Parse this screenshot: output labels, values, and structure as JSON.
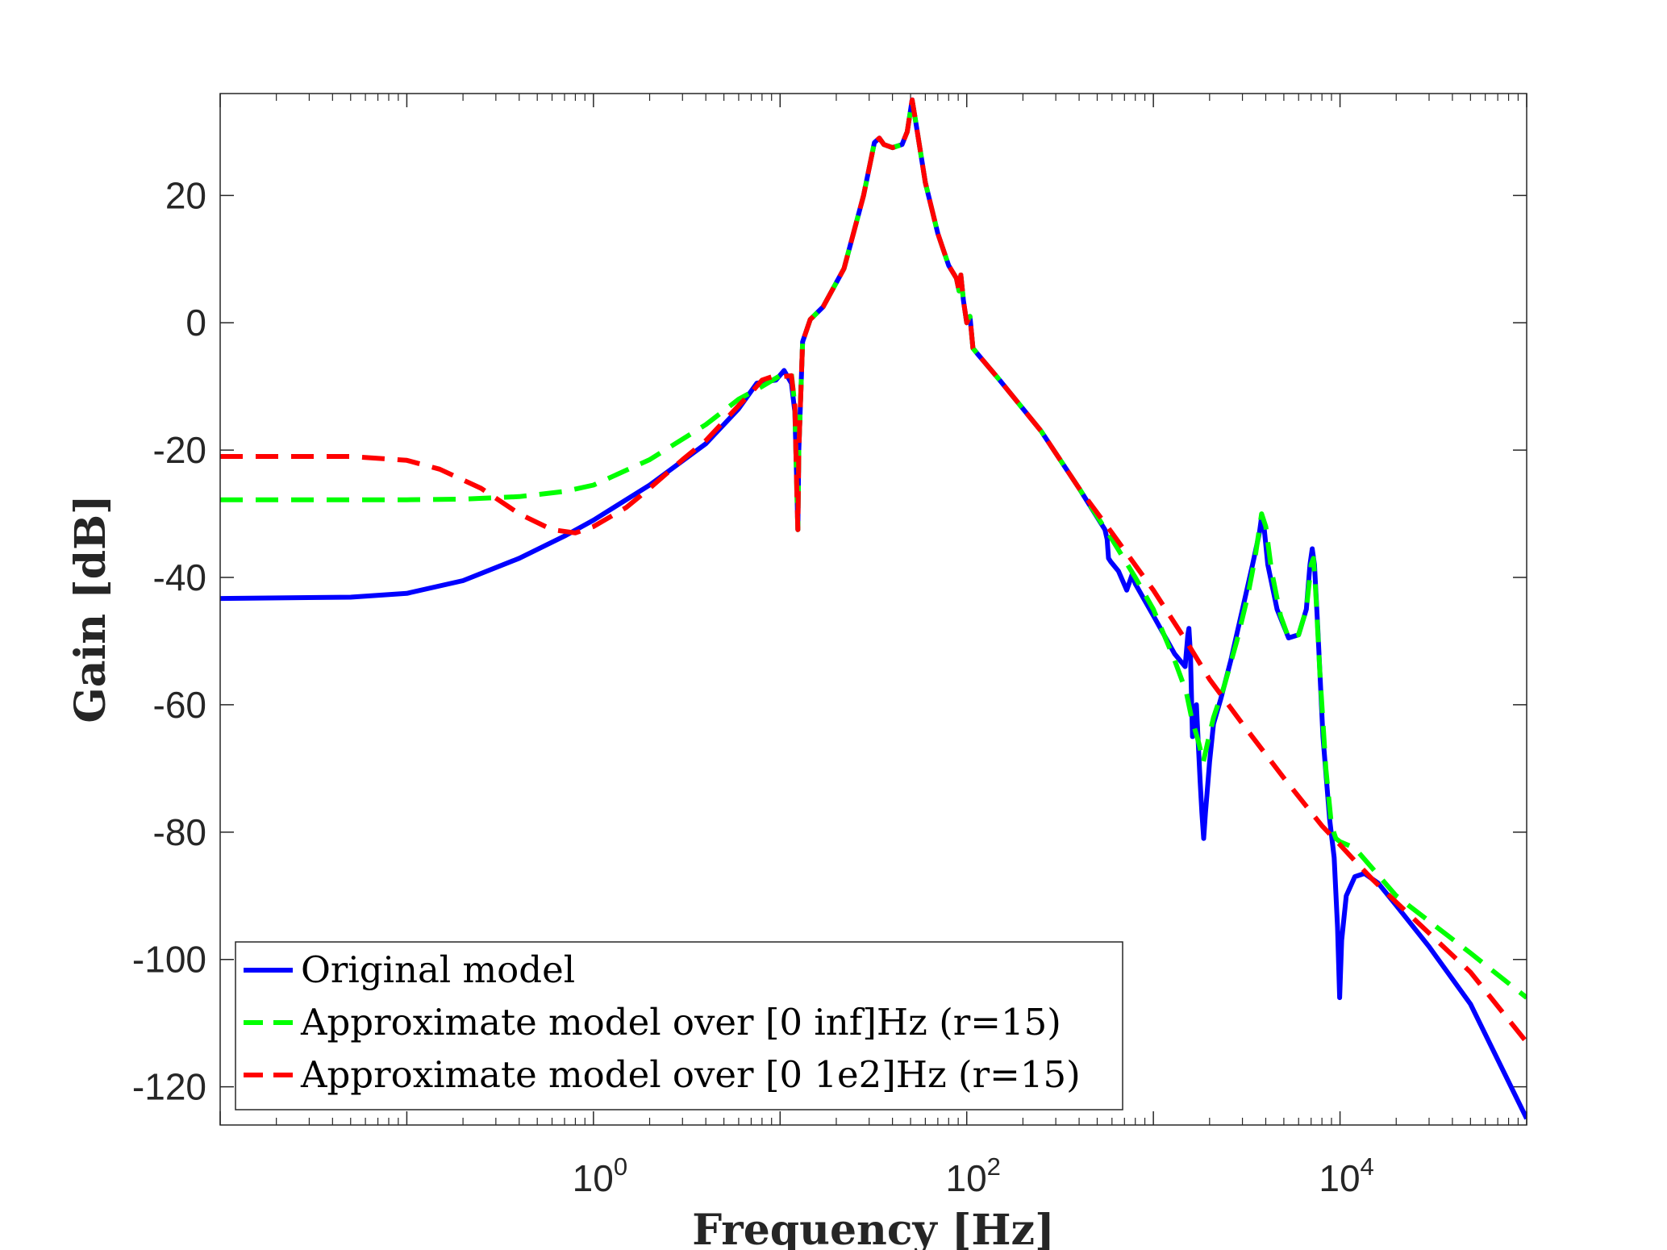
{
  "chart_data": {
    "type": "line",
    "xscale": "log",
    "xlabel": "Frequency [Hz]",
    "ylabel": "Gain [dB]",
    "xlim": [
      0.01,
      100000
    ],
    "ylim": [
      -126,
      36
    ],
    "xticks": [
      {
        "value": 1,
        "base": "10",
        "exp": "0"
      },
      {
        "value": 100,
        "base": "10",
        "exp": "2"
      },
      {
        "value": 10000,
        "base": "10",
        "exp": "4"
      }
    ],
    "yticks": [
      {
        "value": 20,
        "label": "20"
      },
      {
        "value": 0,
        "label": "0"
      },
      {
        "value": -20,
        "label": "-20"
      },
      {
        "value": -40,
        "label": "-40"
      },
      {
        "value": -60,
        "label": "-60"
      },
      {
        "value": -80,
        "label": "-80"
      },
      {
        "value": -100,
        "label": "-100"
      },
      {
        "value": -120,
        "label": "-120"
      }
    ],
    "grid": false,
    "legend_position": "bottom-left",
    "series": [
      {
        "name": "Original model",
        "color": "#0000ff",
        "style": "solid",
        "points": [
          [
            0.01,
            -43.3
          ],
          [
            0.05,
            -43.1
          ],
          [
            0.1,
            -42.5
          ],
          [
            0.2,
            -40.5
          ],
          [
            0.4,
            -37
          ],
          [
            0.7,
            -33.5
          ],
          [
            1,
            -31
          ],
          [
            2,
            -25.5
          ],
          [
            4,
            -19
          ],
          [
            6,
            -13.5
          ],
          [
            7.5,
            -9.5
          ],
          [
            8.5,
            -9.2
          ],
          [
            9.5,
            -9
          ],
          [
            10.5,
            -7.5
          ],
          [
            11.5,
            -9.5
          ],
          [
            12,
            -14
          ],
          [
            12.3,
            -26
          ],
          [
            12.45,
            -32.5
          ],
          [
            12.6,
            -20
          ],
          [
            13.2,
            -3
          ],
          [
            14.5,
            0.5
          ],
          [
            17,
            2.5
          ],
          [
            22,
            8.5
          ],
          [
            28,
            20
          ],
          [
            32,
            28.3
          ],
          [
            34,
            29
          ],
          [
            36,
            28
          ],
          [
            40,
            27.5
          ],
          [
            45,
            28
          ],
          [
            48,
            30
          ],
          [
            51,
            35
          ],
          [
            53,
            32
          ],
          [
            60,
            22
          ],
          [
            70,
            14
          ],
          [
            80,
            9
          ],
          [
            88,
            7
          ],
          [
            91,
            5
          ],
          [
            93,
            7.5
          ],
          [
            96,
            3.5
          ],
          [
            100,
            0
          ],
          [
            104,
            1
          ],
          [
            108,
            -4
          ],
          [
            115,
            -5
          ],
          [
            150,
            -9
          ],
          [
            250,
            -17
          ],
          [
            400,
            -26
          ],
          [
            550,
            -32.5
          ],
          [
            565,
            -34
          ],
          [
            575,
            -37
          ],
          [
            590,
            -37.5
          ],
          [
            650,
            -39
          ],
          [
            720,
            -42
          ],
          [
            770,
            -39.5
          ],
          [
            800,
            -41
          ],
          [
            1000,
            -46
          ],
          [
            1300,
            -52
          ],
          [
            1480,
            -54
          ],
          [
            1530,
            -49
          ],
          [
            1550,
            -48
          ],
          [
            1580,
            -52
          ],
          [
            1620,
            -65
          ],
          [
            1660,
            -63
          ],
          [
            1700,
            -60
          ],
          [
            1740,
            -66
          ],
          [
            1780,
            -72
          ],
          [
            1820,
            -77
          ],
          [
            1860,
            -81
          ],
          [
            1900,
            -77
          ],
          [
            2000,
            -69
          ],
          [
            2100,
            -63
          ],
          [
            2300,
            -59
          ],
          [
            2600,
            -53
          ],
          [
            3000,
            -45
          ],
          [
            3400,
            -38
          ],
          [
            3700,
            -33
          ],
          [
            3800,
            -30.5
          ],
          [
            3900,
            -31.5
          ],
          [
            4100,
            -38
          ],
          [
            4600,
            -45
          ],
          [
            5300,
            -49.5
          ],
          [
            6000,
            -49
          ],
          [
            6600,
            -45
          ],
          [
            6900,
            -38
          ],
          [
            7100,
            -35.5
          ],
          [
            7300,
            -38
          ],
          [
            7600,
            -48
          ],
          [
            8100,
            -65
          ],
          [
            8800,
            -78
          ],
          [
            9300,
            -84
          ],
          [
            9700,
            -95
          ],
          [
            9950,
            -106
          ],
          [
            10200,
            -97
          ],
          [
            10800,
            -90
          ],
          [
            12000,
            -87
          ],
          [
            13500,
            -86.5
          ],
          [
            16000,
            -88
          ],
          [
            20000,
            -91.5
          ],
          [
            30000,
            -98
          ],
          [
            50000,
            -107
          ],
          [
            100000,
            -125
          ]
        ]
      },
      {
        "name": "Approximate model over [0 inf]Hz (r=15)",
        "color": "#00ff00",
        "style": "dashed",
        "points": [
          [
            0.01,
            -27.8
          ],
          [
            0.1,
            -27.8
          ],
          [
            0.2,
            -27.7
          ],
          [
            0.4,
            -27.3
          ],
          [
            0.7,
            -26.5
          ],
          [
            1,
            -25.5
          ],
          [
            2,
            -21.5
          ],
          [
            4,
            -16
          ],
          [
            6,
            -12
          ],
          [
            8,
            -10
          ],
          [
            10,
            -8.3
          ],
          [
            11.5,
            -8
          ],
          [
            12,
            -13
          ],
          [
            12.3,
            -27
          ],
          [
            12.45,
            -32.5
          ],
          [
            12.6,
            -20
          ],
          [
            13.2,
            -3
          ],
          [
            14.5,
            0.5
          ],
          [
            17,
            2.5
          ],
          [
            22,
            8.5
          ],
          [
            28,
            20
          ],
          [
            32,
            28.3
          ],
          [
            34,
            29
          ],
          [
            36,
            28
          ],
          [
            40,
            27.5
          ],
          [
            45,
            28
          ],
          [
            48,
            30
          ],
          [
            51,
            35
          ],
          [
            53,
            32
          ],
          [
            60,
            22
          ],
          [
            70,
            14
          ],
          [
            80,
            9
          ],
          [
            88,
            7
          ],
          [
            91,
            5
          ],
          [
            93,
            7.5
          ],
          [
            96,
            3.5
          ],
          [
            100,
            0
          ],
          [
            104,
            1
          ],
          [
            108,
            -4
          ],
          [
            115,
            -5
          ],
          [
            150,
            -9
          ],
          [
            250,
            -17
          ],
          [
            400,
            -26
          ],
          [
            600,
            -34
          ],
          [
            800,
            -40
          ],
          [
            1000,
            -45
          ],
          [
            1300,
            -53
          ],
          [
            1500,
            -58
          ],
          [
            1600,
            -62
          ],
          [
            1750,
            -66
          ],
          [
            1850,
            -69
          ],
          [
            1950,
            -66
          ],
          [
            2100,
            -62
          ],
          [
            2400,
            -57
          ],
          [
            2800,
            -50
          ],
          [
            3200,
            -43
          ],
          [
            3500,
            -37
          ],
          [
            3800,
            -30
          ],
          [
            4000,
            -32
          ],
          [
            4300,
            -39
          ],
          [
            4800,
            -46
          ],
          [
            5300,
            -49.5
          ],
          [
            6000,
            -49
          ],
          [
            6600,
            -45
          ],
          [
            7000,
            -38
          ],
          [
            7200,
            -37
          ],
          [
            7400,
            -42
          ],
          [
            7800,
            -55
          ],
          [
            8400,
            -70
          ],
          [
            9000,
            -79
          ],
          [
            9500,
            -81
          ],
          [
            10000,
            -81.5
          ],
          [
            12000,
            -82.5
          ],
          [
            20000,
            -90
          ],
          [
            50000,
            -99
          ],
          [
            100000,
            -106
          ]
        ]
      },
      {
        "name": "Approximate model over [0 1e2]Hz (r=15)",
        "color": "#ff0000",
        "style": "dashed",
        "points": [
          [
            0.01,
            -21
          ],
          [
            0.05,
            -21
          ],
          [
            0.1,
            -21.6
          ],
          [
            0.15,
            -23
          ],
          [
            0.25,
            -26
          ],
          [
            0.4,
            -30
          ],
          [
            0.6,
            -32.5
          ],
          [
            0.8,
            -33
          ],
          [
            1,
            -32
          ],
          [
            1.5,
            -29
          ],
          [
            2,
            -26
          ],
          [
            3,
            -21.5
          ],
          [
            4,
            -18.5
          ],
          [
            6,
            -13
          ],
          [
            7,
            -11
          ],
          [
            8,
            -9
          ],
          [
            9,
            -8.5
          ],
          [
            10,
            -8.5
          ],
          [
            11.5,
            -8.3
          ],
          [
            12,
            -13
          ],
          [
            12.3,
            -27
          ],
          [
            12.45,
            -32.5
          ],
          [
            12.6,
            -20
          ],
          [
            13.2,
            -3
          ],
          [
            14.5,
            0.5
          ],
          [
            17,
            2.5
          ],
          [
            22,
            8.5
          ],
          [
            28,
            20
          ],
          [
            32,
            28.3
          ],
          [
            34,
            29
          ],
          [
            36,
            28
          ],
          [
            40,
            27.5
          ],
          [
            45,
            28
          ],
          [
            48,
            30
          ],
          [
            51,
            35
          ],
          [
            53,
            32
          ],
          [
            60,
            22
          ],
          [
            70,
            14
          ],
          [
            80,
            9
          ],
          [
            88,
            7
          ],
          [
            91,
            5
          ],
          [
            93,
            7.5
          ],
          [
            96,
            3.5
          ],
          [
            100,
            0
          ],
          [
            104,
            1
          ],
          [
            108,
            -4
          ],
          [
            115,
            -5
          ],
          [
            150,
            -9
          ],
          [
            250,
            -17
          ],
          [
            400,
            -26
          ],
          [
            600,
            -33
          ],
          [
            1000,
            -42
          ],
          [
            1500,
            -50
          ],
          [
            2000,
            -56
          ],
          [
            3000,
            -63
          ],
          [
            5000,
            -71.5
          ],
          [
            8000,
            -79
          ],
          [
            10000,
            -82
          ],
          [
            12000,
            -84.5
          ],
          [
            15000,
            -87.5
          ],
          [
            20000,
            -91
          ],
          [
            50000,
            -102
          ],
          [
            100000,
            -113
          ]
        ]
      }
    ]
  }
}
